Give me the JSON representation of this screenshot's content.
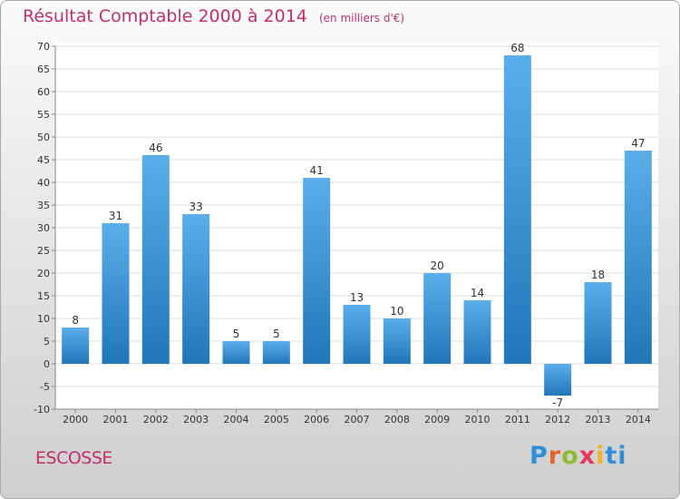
{
  "chart_data": {
    "type": "bar",
    "title": "Résultat Comptable 2000 à 2014",
    "subtitle": "(en milliers d'€)",
    "categories": [
      "2000",
      "2001",
      "2002",
      "2003",
      "2004",
      "2005",
      "2006",
      "2007",
      "2008",
      "2009",
      "2010",
      "2011",
      "2012",
      "2013",
      "2014"
    ],
    "values": [
      8,
      31,
      46,
      33,
      5,
      5,
      41,
      13,
      10,
      20,
      14,
      68,
      -7,
      18,
      47
    ],
    "ylim": [
      -10,
      70
    ],
    "yticks": [
      -10,
      -5,
      0,
      5,
      10,
      15,
      20,
      25,
      30,
      35,
      40,
      45,
      50,
      55,
      60,
      65,
      70
    ],
    "xlabel": "",
    "ylabel": "",
    "grid": true,
    "colors": {
      "bar_top": "#5aaeea",
      "bar_bottom": "#2176b8",
      "grid": "#dddddd",
      "axis": "#888888"
    }
  },
  "footer": {
    "region": "ESCOSSE",
    "logo_letters": [
      "P",
      "r",
      "o",
      "x",
      "i",
      "ti"
    ]
  }
}
